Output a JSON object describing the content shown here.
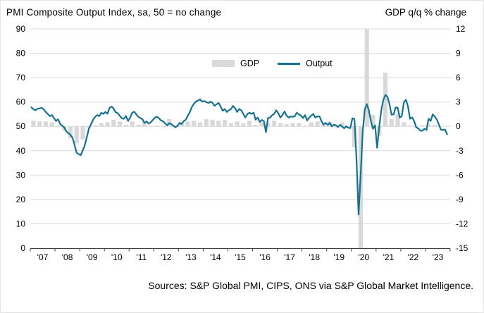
{
  "title": "PMI Composite Output Index, sa, 50 = no change",
  "right_axis_title": "GDP q/q % change",
  "source": "Sources: S&P Global PMI, CIPS, ONS via S&P Global Market Intelligence.",
  "legend": {
    "gdp": "GDP",
    "output": "Output"
  },
  "colors": {
    "line": "#16718e",
    "bar": "#d9d9d9",
    "grid": "#d9d9d9",
    "axis": "#404040",
    "text": "#000000"
  },
  "chart_data": {
    "type": "line+bar",
    "left_axis": {
      "label": "PMI Composite Output Index",
      "min": 0,
      "max": 90,
      "ticks": [
        0,
        10,
        20,
        30,
        40,
        50,
        60,
        70,
        80,
        90
      ]
    },
    "right_axis": {
      "label": "GDP q/q % change",
      "min": -15,
      "max": 12,
      "ticks": [
        -15,
        -12,
        -9,
        -6,
        -3,
        0,
        3,
        6,
        9,
        12
      ]
    },
    "x_labels": [
      "'07",
      "'08",
      "'09",
      "'10",
      "'11",
      "'12",
      "'13",
      "'14",
      "'15",
      "'16",
      "'17",
      "'18",
      "'19",
      "'20",
      "'21",
      "'22",
      "'23"
    ],
    "months_per_year": 12,
    "total_months": 204,
    "output_monthly": [
      57.8,
      57.0,
      56.6,
      57.2,
      57.4,
      57.6,
      57.0,
      55.9,
      55.1,
      54.2,
      54.6,
      53.4,
      52.2,
      52.9,
      51.0,
      50.2,
      49.6,
      47.9,
      47.2,
      46.5,
      45.3,
      42.4,
      39.2,
      38.6,
      38.2,
      40.1,
      42.3,
      45.6,
      49.2,
      50.8,
      52.7,
      53.9,
      54.6,
      54.2,
      55.6,
      55.1,
      55.9,
      55.2,
      57.6,
      58.1,
      57.3,
      55.8,
      55.4,
      54.3,
      53.3,
      53.1,
      54.2,
      52.2,
      53.6,
      55.6,
      56.0,
      54.9,
      53.9,
      53.4,
      52.9,
      51.4,
      52.0,
      51.1,
      51.6,
      52.6,
      53.6,
      53.9,
      53.4,
      52.4,
      52.1,
      51.2,
      50.4,
      51.3,
      50.9,
      50.3,
      49.6,
      50.2,
      51.4,
      51.0,
      52.1,
      52.7,
      54.3,
      55.8,
      57.9,
      59.3,
      60.2,
      60.6,
      61.1,
      60.1,
      60.4,
      60.0,
      59.6,
      60.1,
      59.7,
      58.4,
      59.1,
      59.6,
      58.1,
      56.4,
      57.1,
      55.9,
      56.6,
      57.1,
      58.4,
      57.4,
      55.9,
      57.1,
      56.6,
      55.1,
      53.6,
      55.1,
      55.6,
      55.1,
      55.6,
      52.7,
      53.6,
      51.8,
      52.6,
      52.1,
      47.6,
      53.4,
      53.6,
      54.6,
      55.1,
      56.6,
      55.4,
      53.6,
      54.6,
      56.1,
      54.4,
      53.6,
      54.1,
      53.9,
      54.1,
      55.6,
      54.9,
      54.4,
      53.4,
      54.6,
      52.4,
      53.6,
      54.4,
      55.1,
      53.6,
      54.1,
      54.1,
      52.1,
      50.7,
      51.4,
      50.6,
      51.4,
      50.0,
      50.7,
      50.4,
      49.7,
      50.6,
      49.9,
      49.2,
      50.0,
      49.4,
      49.3,
      53.3,
      53.0,
      36.0,
      13.8,
      30.0,
      47.7,
      57.0,
      59.1,
      56.5,
      52.1,
      49.0,
      50.4,
      41.2,
      49.6,
      56.4,
      60.7,
      62.9,
      62.2,
      59.2,
      54.8,
      54.9,
      57.8,
      57.6,
      53.6,
      54.2,
      59.9,
      60.9,
      58.2,
      53.1,
      53.7,
      52.1,
      49.6,
      49.1,
      48.2,
      48.2,
      49.0,
      48.5,
      53.1,
      52.2,
      54.9,
      54.0,
      52.8,
      50.8,
      48.6,
      48.5,
      48.7,
      46.7
    ],
    "gdp_quarterly": [
      0.7,
      0.6,
      0.6,
      0.5,
      0.1,
      -0.5,
      -1.5,
      -2.1,
      -1.6,
      -0.2,
      0.1,
      0.4,
      0.5,
      0.8,
      0.6,
      0.2,
      0.6,
      0.2,
      0.5,
      0.1,
      0.1,
      -0.1,
      0.9,
      -0.1,
      0.5,
      0.6,
      0.7,
      0.5,
      0.9,
      0.8,
      0.7,
      0.8,
      0.4,
      0.6,
      0.4,
      0.7,
      0.2,
      0.5,
      0.4,
      0.7,
      0.4,
      0.3,
      0.4,
      0.4,
      0.1,
      0.5,
      0.6,
      0.2,
      0.6,
      -0.1,
      0.5,
      0.0,
      -2.6,
      -19.4,
      17.6,
      1.4,
      -1.2,
      6.6,
      0.9,
      1.5,
      0.5,
      0.1,
      -0.1,
      0.1,
      0.3,
      0.2,
      0.0
    ]
  }
}
